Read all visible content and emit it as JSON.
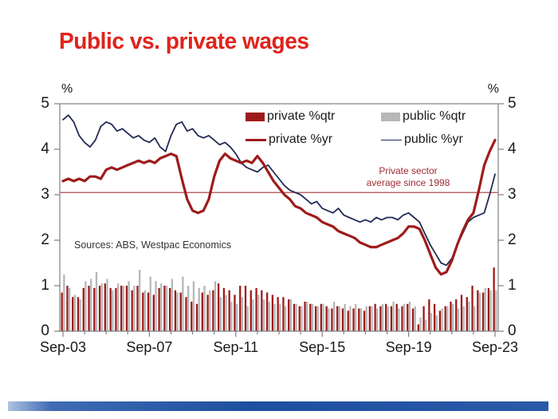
{
  "title": "Public vs. private wages",
  "colors": {
    "title": "#e0231d",
    "private": "#9e1b1b",
    "public_bar": "#b7b7b7",
    "public_line": "#222a57",
    "reference": "#a8343a",
    "axis": "#7f7f7f",
    "text": "#1a1a1a",
    "annotation": "#9e2a32",
    "sources_text": "#333333",
    "footer_gradient": [
      "#aec2e2",
      "#3f6cb4",
      "#1e4f9e",
      "#2a5aa8"
    ]
  },
  "axis": {
    "y_unit_left": "%",
    "y_unit_right": "%",
    "y_ticks": [
      "0",
      "1",
      "2",
      "3",
      "4",
      "5"
    ],
    "x_tick_labels": [
      "Sep-03",
      "Sep-07",
      "Sep-11",
      "Sep-15",
      "Sep-19",
      "Sep-23"
    ]
  },
  "annotation": {
    "line1": "Private sector",
    "line2": "average since 1998"
  },
  "sources": "Sources: ABS, Westpac Economics",
  "chart_data": {
    "type": "bar+line",
    "frequency": "quarterly",
    "x_start": "Sep-03",
    "x_end": "Sep-23",
    "x_tick_labels": [
      "Sep-03",
      "Sep-07",
      "Sep-11",
      "Sep-15",
      "Sep-19",
      "Sep-23"
    ],
    "x_tick_positions": [
      0,
      16,
      32,
      48,
      64,
      80
    ],
    "ylim": [
      0,
      5
    ],
    "ylabel": "%",
    "legend_position": "top-inside",
    "reference_line": {
      "label": "Private sector average since 1998",
      "value": 3.05
    },
    "series": [
      {
        "name": "private %qtr",
        "type": "bar",
        "color": "#9e1b1b",
        "values": [
          0.85,
          1.0,
          0.75,
          0.75,
          0.95,
          1.0,
          0.95,
          1.0,
          1.05,
          0.95,
          0.95,
          1.0,
          1.0,
          0.9,
          1.0,
          0.85,
          0.85,
          0.8,
          0.95,
          1.0,
          0.95,
          0.9,
          0.85,
          0.75,
          0.65,
          0.6,
          0.85,
          0.8,
          0.9,
          1.05,
          0.95,
          0.9,
          0.8,
          1.0,
          1.0,
          0.9,
          0.95,
          0.9,
          0.85,
          0.8,
          0.75,
          0.75,
          0.7,
          0.6,
          0.55,
          0.65,
          0.6,
          0.55,
          0.6,
          0.55,
          0.5,
          0.55,
          0.5,
          0.45,
          0.5,
          0.5,
          0.45,
          0.55,
          0.6,
          0.55,
          0.6,
          0.55,
          0.6,
          0.55,
          0.6,
          0.5,
          0.15,
          0.55,
          0.7,
          0.6,
          0.45,
          0.55,
          0.65,
          0.7,
          0.8,
          0.75,
          1.0,
          0.9,
          0.85,
          0.95,
          1.4
        ]
      },
      {
        "name": "public %qtr",
        "type": "bar",
        "color": "#b7b7b7",
        "values": [
          1.25,
          0.95,
          0.8,
          0.7,
          1.1,
          1.15,
          1.3,
          1.05,
          1.15,
          0.9,
          1.05,
          1.0,
          1.1,
          1.0,
          1.35,
          0.9,
          1.2,
          1.1,
          1.05,
          1.0,
          1.15,
          0.85,
          1.2,
          1.0,
          1.1,
          0.95,
          1.0,
          0.9,
          1.1,
          0.75,
          0.8,
          0.65,
          0.6,
          0.75,
          0.55,
          0.7,
          0.8,
          0.7,
          0.65,
          0.6,
          0.6,
          0.55,
          0.7,
          0.6,
          0.55,
          0.65,
          0.6,
          0.55,
          0.6,
          0.5,
          0.65,
          0.55,
          0.6,
          0.55,
          0.6,
          0.5,
          0.55,
          0.55,
          0.5,
          0.6,
          0.55,
          0.65,
          0.5,
          0.6,
          0.65,
          0.55,
          0.3,
          0.25,
          0.4,
          0.35,
          0.5,
          0.55,
          0.6,
          0.5,
          0.55,
          0.65,
          0.55,
          0.85,
          0.95,
          0.9,
          0.9
        ]
      },
      {
        "name": "private %yr",
        "type": "line",
        "color": "#9e1b1b",
        "stroke_width": 3.2,
        "values": [
          3.3,
          3.35,
          3.3,
          3.35,
          3.3,
          3.4,
          3.4,
          3.35,
          3.55,
          3.6,
          3.55,
          3.6,
          3.65,
          3.7,
          3.75,
          3.7,
          3.75,
          3.7,
          3.8,
          3.85,
          3.9,
          3.85,
          3.35,
          2.9,
          2.65,
          2.6,
          2.65,
          2.9,
          3.4,
          3.75,
          3.9,
          3.8,
          3.75,
          3.7,
          3.75,
          3.7,
          3.85,
          3.7,
          3.5,
          3.3,
          3.15,
          3.0,
          2.9,
          2.75,
          2.7,
          2.6,
          2.55,
          2.5,
          2.4,
          2.35,
          2.3,
          2.2,
          2.15,
          2.1,
          2.05,
          1.95,
          1.9,
          1.85,
          1.85,
          1.9,
          1.95,
          2.0,
          2.05,
          2.15,
          2.3,
          2.3,
          2.25,
          2.0,
          1.7,
          1.4,
          1.25,
          1.3,
          1.55,
          1.9,
          2.2,
          2.45,
          2.6,
          3.1,
          3.65,
          3.95,
          4.2
        ]
      },
      {
        "name": "public %yr",
        "type": "line",
        "color": "#222a57",
        "stroke_width": 1.8,
        "values": [
          4.65,
          4.75,
          4.6,
          4.3,
          4.15,
          4.05,
          4.2,
          4.5,
          4.6,
          4.55,
          4.4,
          4.45,
          4.35,
          4.25,
          4.3,
          4.2,
          4.15,
          4.25,
          4.05,
          3.95,
          4.3,
          4.55,
          4.6,
          4.4,
          4.45,
          4.3,
          4.25,
          4.3,
          4.2,
          4.1,
          4.15,
          4.05,
          3.9,
          3.7,
          3.6,
          3.55,
          3.5,
          3.6,
          3.65,
          3.5,
          3.35,
          3.2,
          3.1,
          3.05,
          3.0,
          2.9,
          2.8,
          2.85,
          2.7,
          2.65,
          2.6,
          2.7,
          2.55,
          2.5,
          2.45,
          2.4,
          2.45,
          2.4,
          2.5,
          2.45,
          2.5,
          2.5,
          2.45,
          2.55,
          2.6,
          2.5,
          2.4,
          2.15,
          1.9,
          1.7,
          1.5,
          1.45,
          1.6,
          1.9,
          2.15,
          2.4,
          2.5,
          2.55,
          2.6,
          3.0,
          3.45
        ]
      }
    ]
  }
}
